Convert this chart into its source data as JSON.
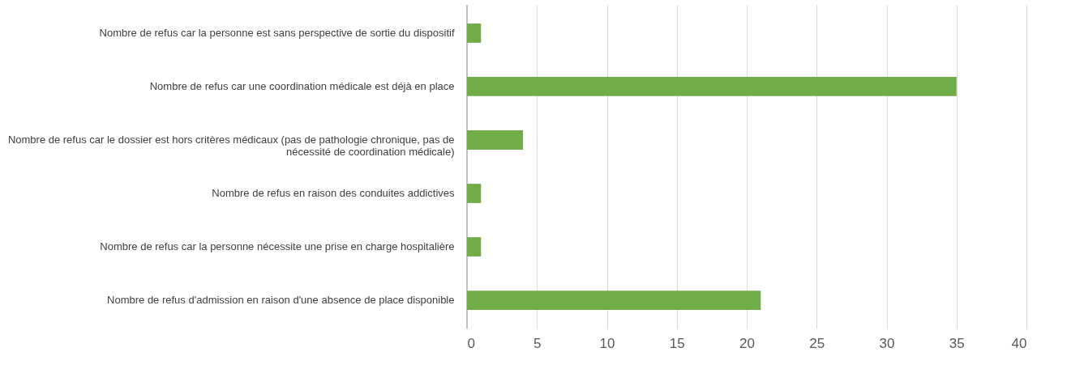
{
  "chart_data": {
    "type": "bar",
    "orientation": "horizontal",
    "categories": [
      "Nombre de refus car la personne est sans perspective de sortie du dispositif",
      "Nombre de refus car une coordination médicale est déjà en place",
      "Nombre de refus car le dossier est hors critères médicaux (pas de pathologie chronique,  pas de nécessité de coordination médicale)",
      "Nombre de refus en raison des conduites addictives",
      "Nombre de refus car la personne nécessite une prise en charge hospitalière",
      "Nombre de refus d'admission en raison d'une absence de place disponible"
    ],
    "values": [
      1,
      35,
      4,
      1,
      1,
      21
    ],
    "color": "#70ad47",
    "xlim": [
      0,
      40
    ],
    "xticks": [
      0,
      5,
      10,
      15,
      20,
      25,
      30,
      35,
      40
    ],
    "grid": "x"
  }
}
